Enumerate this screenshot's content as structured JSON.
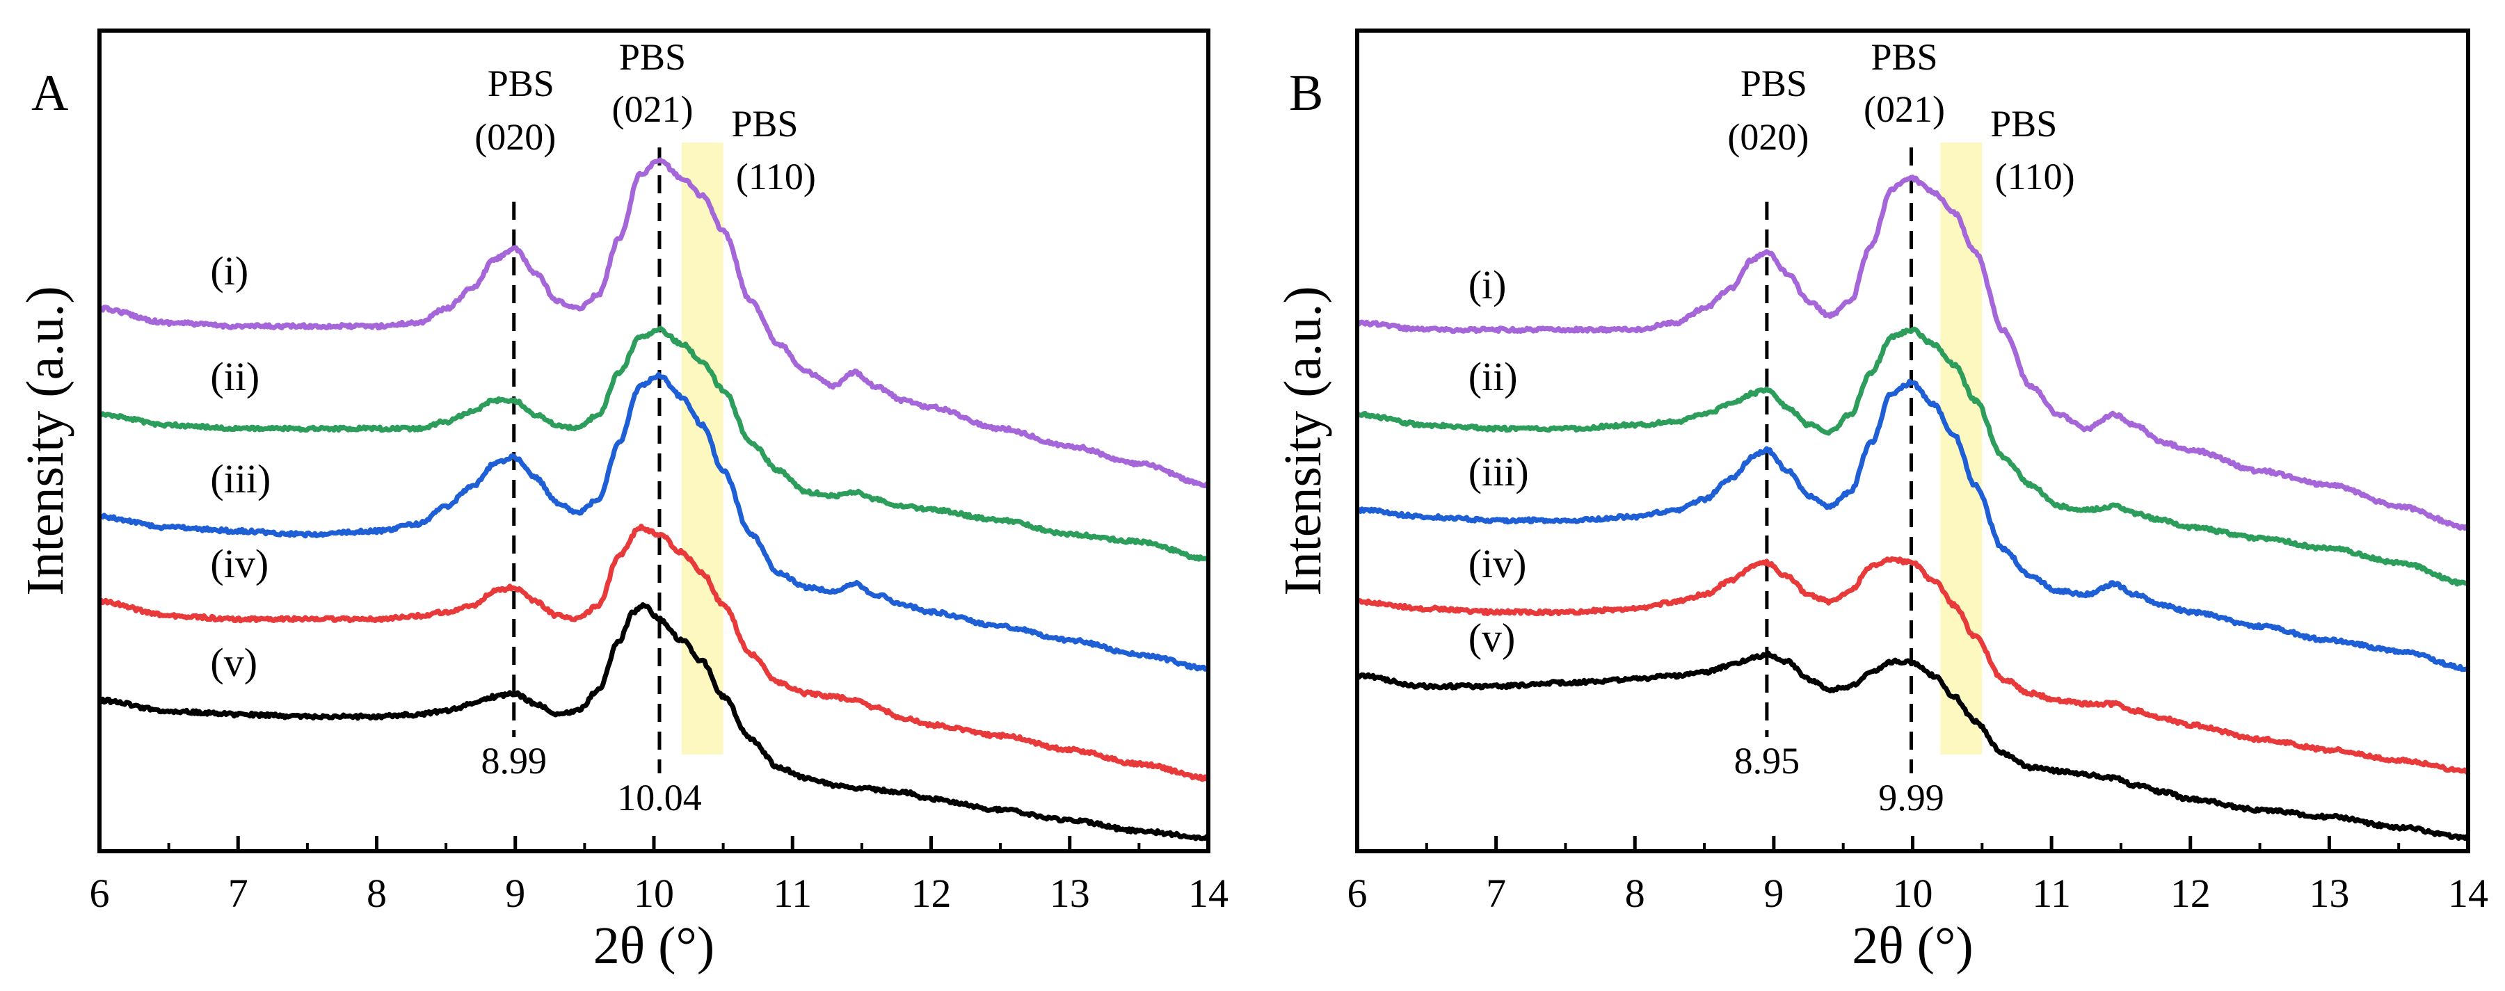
{
  "chart_data": [
    {
      "type": "line",
      "panel": "A",
      "xlabel": "2θ (°)",
      "ylabel": "Intensity (a.u.)",
      "xlim": [
        6,
        14
      ],
      "ylim": [
        0,
        1
      ],
      "xticks": [
        "6",
        "7",
        "8",
        "9",
        "10",
        "11",
        "12",
        "13",
        "14"
      ],
      "highlight_band": {
        "x0": 10.2,
        "x1": 10.5,
        "color": "#fdf8c0"
      },
      "peak_lines": [
        {
          "x": 8.99,
          "label": "8.99",
          "name": "PBS",
          "index": "(020)"
        },
        {
          "x": 10.04,
          "label": "10.04",
          "name": "PBS",
          "index": "(021)"
        }
      ],
      "band_label": {
        "name": "PBS",
        "index": "(110)"
      },
      "series": [
        {
          "name": "(i)",
          "color": "#a466d8",
          "x": [
            6.0,
            6.5,
            7.0,
            7.5,
            8.0,
            8.3,
            8.5,
            8.7,
            8.85,
            8.99,
            9.15,
            9.3,
            9.45,
            9.6,
            9.75,
            9.9,
            10.04,
            10.2,
            10.35,
            10.5,
            10.7,
            10.9,
            11.1,
            11.3,
            11.45,
            11.6,
            11.8,
            12.0,
            12.5,
            13.0,
            13.5,
            14.0
          ],
          "y": [
            0.75,
            0.73,
            0.725,
            0.725,
            0.725,
            0.73,
            0.75,
            0.78,
            0.82,
            0.835,
            0.8,
            0.76,
            0.75,
            0.77,
            0.85,
            0.94,
            0.96,
            0.935,
            0.91,
            0.86,
            0.76,
            0.7,
            0.66,
            0.64,
            0.66,
            0.64,
            0.62,
            0.61,
            0.58,
            0.555,
            0.53,
            0.5
          ]
        },
        {
          "name": "(ii)",
          "color": "#2d9d5c",
          "x": [
            6.0,
            6.5,
            7.0,
            7.5,
            8.0,
            8.3,
            8.5,
            8.7,
            8.85,
            8.99,
            9.15,
            9.3,
            9.45,
            9.6,
            9.75,
            9.9,
            10.04,
            10.2,
            10.35,
            10.5,
            10.7,
            10.9,
            11.1,
            11.3,
            11.45,
            11.6,
            11.8,
            12.0,
            12.5,
            13.0,
            13.5,
            14.0
          ],
          "y": [
            0.6,
            0.585,
            0.58,
            0.58,
            0.58,
            0.58,
            0.59,
            0.605,
            0.62,
            0.62,
            0.6,
            0.585,
            0.58,
            0.6,
            0.66,
            0.71,
            0.72,
            0.7,
            0.675,
            0.635,
            0.56,
            0.52,
            0.49,
            0.485,
            0.49,
            0.48,
            0.47,
            0.465,
            0.45,
            0.43,
            0.42,
            0.395
          ]
        },
        {
          "name": "(iii)",
          "color": "#1f5fd6",
          "x": [
            6.0,
            6.5,
            7.0,
            7.5,
            8.0,
            8.3,
            8.5,
            8.7,
            8.85,
            8.99,
            9.15,
            9.3,
            9.45,
            9.6,
            9.75,
            9.9,
            10.04,
            10.2,
            10.35,
            10.5,
            10.7,
            10.9,
            11.1,
            11.3,
            11.45,
            11.6,
            11.8,
            12.0,
            12.5,
            13.0,
            13.5,
            14.0
          ],
          "y": [
            0.455,
            0.44,
            0.435,
            0.43,
            0.435,
            0.445,
            0.47,
            0.5,
            0.53,
            0.54,
            0.51,
            0.475,
            0.46,
            0.48,
            0.56,
            0.64,
            0.655,
            0.625,
            0.585,
            0.52,
            0.43,
            0.375,
            0.355,
            0.35,
            0.36,
            0.345,
            0.33,
            0.32,
            0.3,
            0.28,
            0.26,
            0.24
          ]
        },
        {
          "name": "(iv)",
          "color": "#e83a3a",
          "x": [
            6.0,
            6.5,
            7.0,
            7.5,
            8.0,
            8.3,
            8.5,
            8.7,
            8.85,
            8.99,
            9.15,
            9.3,
            9.45,
            9.6,
            9.75,
            9.9,
            10.04,
            10.2,
            10.35,
            10.5,
            10.7,
            10.9,
            11.1,
            11.3,
            11.45,
            11.6,
            11.8,
            12.0,
            12.5,
            13.0,
            13.5,
            14.0
          ],
          "y": [
            0.335,
            0.315,
            0.31,
            0.31,
            0.31,
            0.315,
            0.32,
            0.33,
            0.35,
            0.355,
            0.335,
            0.315,
            0.31,
            0.33,
            0.4,
            0.44,
            0.43,
            0.405,
            0.375,
            0.33,
            0.26,
            0.22,
            0.205,
            0.2,
            0.195,
            0.185,
            0.17,
            0.16,
            0.145,
            0.125,
            0.105,
            0.085
          ]
        },
        {
          "name": "(v)",
          "color": "#000000",
          "x": [
            6.0,
            6.5,
            7.0,
            7.5,
            8.0,
            8.3,
            8.5,
            8.7,
            8.85,
            8.99,
            9.15,
            9.3,
            9.45,
            9.6,
            9.75,
            9.85,
            9.92,
            10.04,
            10.2,
            10.35,
            10.5,
            10.7,
            10.9,
            11.1,
            11.3,
            11.5,
            11.8,
            12.0,
            12.5,
            13.0,
            13.5,
            14.0
          ],
          "y": [
            0.195,
            0.18,
            0.175,
            0.172,
            0.172,
            0.175,
            0.18,
            0.19,
            0.2,
            0.205,
            0.19,
            0.175,
            0.18,
            0.21,
            0.28,
            0.32,
            0.33,
            0.31,
            0.28,
            0.25,
            0.2,
            0.14,
            0.1,
            0.085,
            0.075,
            0.07,
            0.065,
            0.055,
            0.04,
            0.025,
            0.01,
            0.0
          ]
        }
      ]
    },
    {
      "type": "line",
      "panel": "B",
      "xlabel": "2θ (°)",
      "ylabel": "Intensity (a.u.)",
      "xlim": [
        6,
        14
      ],
      "ylim": [
        0,
        1
      ],
      "xticks": [
        "6",
        "7",
        "8",
        "9",
        "10",
        "11",
        "12",
        "13",
        "14"
      ],
      "highlight_band": {
        "x0": 10.2,
        "x1": 10.5,
        "color": "#fdf8c0"
      },
      "peak_lines": [
        {
          "x": 8.95,
          "label": "8.95",
          "name": "PBS",
          "index": "(020)"
        },
        {
          "x": 9.99,
          "label": "9.99",
          "name": "PBS",
          "index": "(021)"
        }
      ],
      "band_label": {
        "name": "PBS",
        "index": "(110)"
      },
      "series": [
        {
          "name": "(i)",
          "color": "#a466d8",
          "x": [
            6.0,
            6.5,
            7.0,
            7.5,
            8.0,
            8.3,
            8.5,
            8.7,
            8.85,
            8.95,
            9.1,
            9.25,
            9.4,
            9.55,
            9.7,
            9.85,
            9.99,
            10.15,
            10.3,
            10.45,
            10.65,
            10.85,
            11.05,
            11.25,
            11.45,
            11.6,
            11.8,
            12.0,
            12.5,
            13.0,
            13.5,
            14.0
          ],
          "y": [
            0.73,
            0.72,
            0.72,
            0.72,
            0.72,
            0.73,
            0.75,
            0.78,
            0.82,
            0.83,
            0.8,
            0.76,
            0.74,
            0.76,
            0.84,
            0.92,
            0.935,
            0.915,
            0.885,
            0.83,
            0.72,
            0.64,
            0.6,
            0.58,
            0.6,
            0.585,
            0.56,
            0.55,
            0.52,
            0.5,
            0.47,
            0.44
          ]
        },
        {
          "name": "(ii)",
          "color": "#2d9d5c",
          "x": [
            6.0,
            6.5,
            7.0,
            7.5,
            8.0,
            8.3,
            8.5,
            8.7,
            8.85,
            8.95,
            9.1,
            9.25,
            9.4,
            9.55,
            9.7,
            9.85,
            9.99,
            10.15,
            10.3,
            10.45,
            10.65,
            10.85,
            11.05,
            11.25,
            11.45,
            11.6,
            11.8,
            12.0,
            12.5,
            13.0,
            13.5,
            14.0
          ],
          "y": [
            0.6,
            0.585,
            0.58,
            0.58,
            0.585,
            0.59,
            0.6,
            0.615,
            0.63,
            0.635,
            0.61,
            0.585,
            0.575,
            0.6,
            0.66,
            0.71,
            0.72,
            0.7,
            0.67,
            0.62,
            0.54,
            0.5,
            0.47,
            0.465,
            0.47,
            0.46,
            0.45,
            0.44,
            0.425,
            0.41,
            0.39,
            0.36
          ]
        },
        {
          "name": "(iii)",
          "color": "#1f5fd6",
          "x": [
            6.0,
            6.5,
            7.0,
            7.5,
            8.0,
            8.3,
            8.5,
            8.7,
            8.85,
            8.95,
            9.1,
            9.25,
            9.4,
            9.55,
            9.7,
            9.85,
            9.99,
            10.15,
            10.3,
            10.45,
            10.65,
            10.85,
            11.05,
            11.25,
            11.45,
            11.6,
            11.8,
            12.0,
            12.5,
            13.0,
            13.5,
            14.0
          ],
          "y": [
            0.465,
            0.455,
            0.45,
            0.45,
            0.455,
            0.465,
            0.48,
            0.51,
            0.54,
            0.55,
            0.52,
            0.485,
            0.47,
            0.49,
            0.56,
            0.63,
            0.645,
            0.615,
            0.57,
            0.5,
            0.41,
            0.37,
            0.35,
            0.345,
            0.36,
            0.345,
            0.33,
            0.32,
            0.3,
            0.28,
            0.265,
            0.24
          ]
        },
        {
          "name": "(iv)",
          "color": "#e83a3a",
          "x": [
            6.0,
            6.5,
            7.0,
            7.5,
            8.0,
            8.3,
            8.5,
            8.7,
            8.85,
            8.95,
            9.1,
            9.25,
            9.4,
            9.55,
            9.7,
            9.85,
            9.99,
            10.15,
            10.3,
            10.45,
            10.65,
            10.85,
            11.05,
            11.25,
            11.45,
            11.6,
            11.8,
            12.0,
            12.5,
            13.0,
            13.5,
            14.0
          ],
          "y": [
            0.335,
            0.325,
            0.32,
            0.32,
            0.325,
            0.335,
            0.345,
            0.365,
            0.385,
            0.39,
            0.37,
            0.345,
            0.335,
            0.35,
            0.385,
            0.395,
            0.39,
            0.365,
            0.33,
            0.285,
            0.225,
            0.205,
            0.195,
            0.19,
            0.19,
            0.18,
            0.17,
            0.16,
            0.14,
            0.125,
            0.11,
            0.095
          ]
        },
        {
          "name": "(v)",
          "color": "#000000",
          "x": [
            6.0,
            6.5,
            7.0,
            7.5,
            8.0,
            8.3,
            8.5,
            8.7,
            8.85,
            8.95,
            9.1,
            9.25,
            9.4,
            9.55,
            9.7,
            9.85,
            9.99,
            10.15,
            10.3,
            10.45,
            10.65,
            10.85,
            11.05,
            11.25,
            11.45,
            11.6,
            11.8,
            12.0,
            12.5,
            13.0,
            13.5,
            14.0
          ],
          "y": [
            0.23,
            0.215,
            0.215,
            0.22,
            0.225,
            0.23,
            0.235,
            0.245,
            0.255,
            0.26,
            0.25,
            0.225,
            0.21,
            0.215,
            0.235,
            0.25,
            0.25,
            0.23,
            0.2,
            0.165,
            0.12,
            0.1,
            0.095,
            0.09,
            0.085,
            0.075,
            0.065,
            0.055,
            0.04,
            0.03,
            0.015,
            0.0
          ]
        }
      ]
    }
  ]
}
